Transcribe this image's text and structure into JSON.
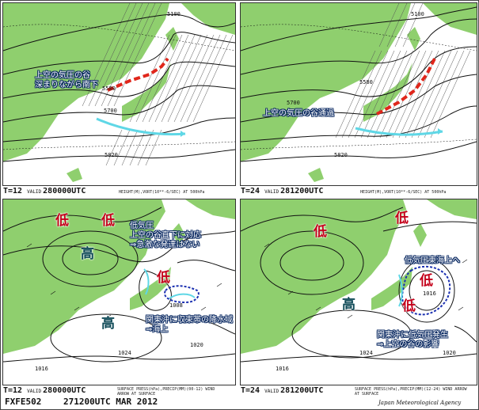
{
  "panels": {
    "top_left": {
      "forecast_time": "T=12",
      "valid_label": "VALID",
      "valid_time": "280000UTC",
      "description": "HEIGHT(M),VORT(10**-6/SEC) AT 500hPa",
      "annotation": [
        "上空の気圧の谷",
        "深まりながら南下"
      ],
      "contour_labels": [
        "5100",
        "5580",
        "5700",
        "5820"
      ]
    },
    "top_right": {
      "forecast_time": "T=24",
      "valid_label": "VALID",
      "valid_time": "281200UTC",
      "description": "HEIGHT(M),VORT(10**-6/SEC) AT 500hPa",
      "annotation": [
        "上空の気圧の谷通過"
      ],
      "contour_labels": [
        "5100",
        "5580",
        "5700",
        "5820"
      ]
    },
    "bottom_left": {
      "forecast_time": "T=12",
      "valid_label": "VALID",
      "valid_time": "280000UTC",
      "description": "SURFACE PRESS(hPa),PRECIP(MM)(00-12) WIND ARROW AT SURFACE",
      "annotation_low": [
        "低気圧",
        "上空の谷直下に対応",
        "⇒急激な発達はない"
      ],
      "annotation_rain": [
        "関東沖に収束帯の降水域",
        "⇒海上"
      ],
      "symbols": {
        "low": "低",
        "high": "高"
      },
      "isobar_labels": [
        "1024",
        "1016",
        "1008",
        "1020"
      ]
    },
    "bottom_right": {
      "forecast_time": "T=24",
      "valid_label": "VALID",
      "valid_time": "281200UTC",
      "description": "SURFACE PRESS(hPa),PRECIP(MM)(12-24) WIND ARROW AT SURFACE",
      "annotation_low": [
        "低気圧東海上へ"
      ],
      "annotation_new": [
        "関東沖に低気圧発生",
        "⇒上空の谷の影響"
      ],
      "symbols": {
        "low": "低",
        "high": "高"
      },
      "isobar_labels": [
        "1024",
        "1016",
        "1016",
        "1020"
      ]
    }
  },
  "footer": {
    "chart_id": "FXFE502",
    "issue_time": "271200UTC MAR 2012",
    "agency": "Japan Meteorological Agency"
  },
  "colors": {
    "land_green": "#8fcf6e",
    "trough_red": "#e0261b",
    "jet_cyan": "#5fd7e6",
    "rain_blue": "#1a2fb0"
  }
}
